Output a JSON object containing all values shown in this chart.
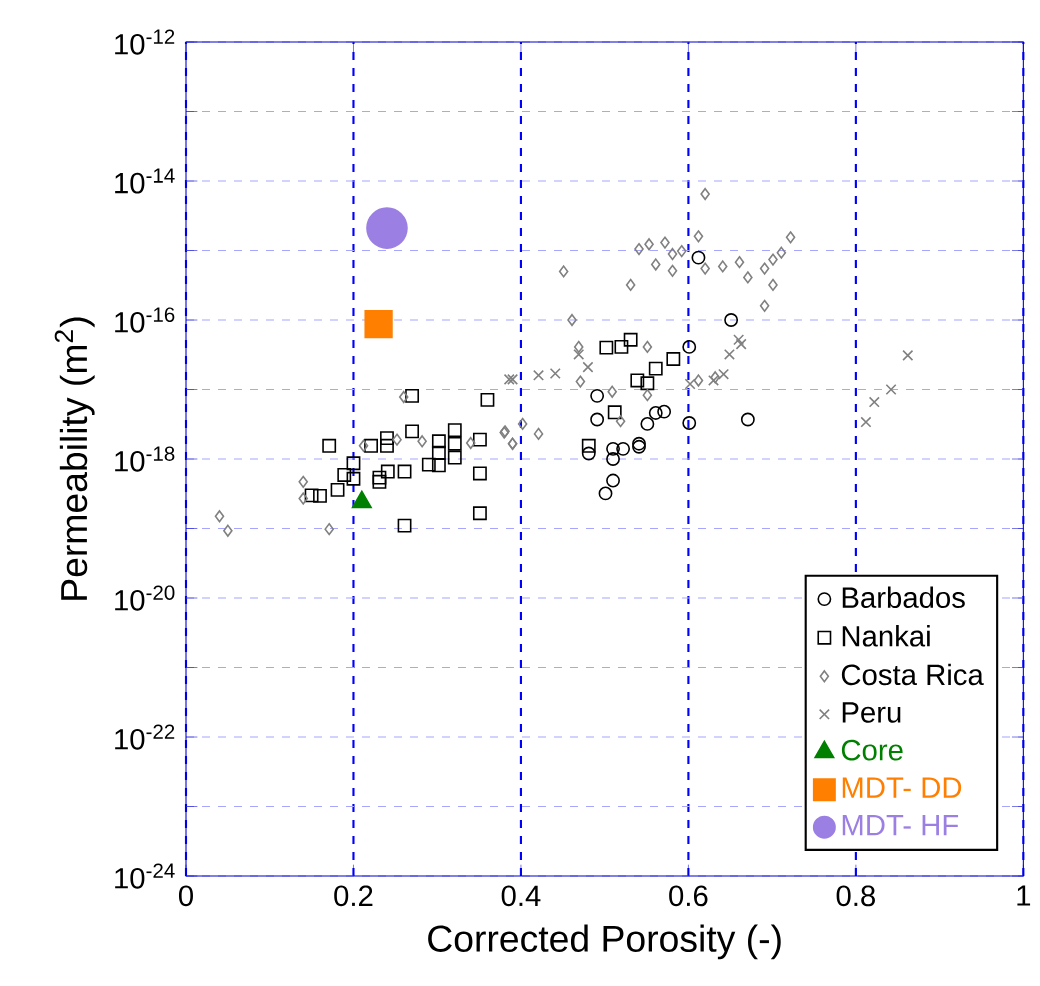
{
  "chart_data": {
    "type": "scatter",
    "xlabel": "Corrected Porosity (-)",
    "ylabel": "Permeability (m$^{2}$)",
    "log": "y",
    "grid": true,
    "legend": "bottom right",
    "xlim": [
      0,
      1
    ],
    "xticks": [
      0,
      0.2,
      0.4,
      0.6,
      0.8,
      1
    ],
    "ylim": [
      1e-24,
      1e-12
    ],
    "yticks": [
      {
        "value": 1e-24,
        "label": "10$^{-24}$"
      },
      {
        "value": 1e-23,
        "label": null
      },
      {
        "value": 1e-22,
        "label": "10$^{-22}$"
      },
      {
        "value": 1e-21,
        "label": null
      },
      {
        "value": 1e-20,
        "label": "10$^{-20}$"
      },
      {
        "value": 1e-19,
        "label": null
      },
      {
        "value": 1e-18,
        "label": "10$^{-18}$"
      },
      {
        "value": 1e-17,
        "label": null
      },
      {
        "value": 1e-16,
        "label": "10$^{-16}$"
      },
      {
        "value": 1e-15,
        "label": null
      },
      {
        "value": 1e-14,
        "label": "10$^{-14}$"
      },
      {
        "value": 1e-13,
        "label": null
      },
      {
        "value": 1e-12,
        "label": "10$^{-12}$"
      }
    ],
    "series": [
      {
        "name": "Barbados",
        "color": "#000000",
        "marker": "circle",
        "x": [
          0.612,
          0.651,
          0.601,
          0.491,
          0.491,
          0.601,
          0.671,
          0.561,
          0.571,
          0.551,
          0.541,
          0.541,
          0.522,
          0.51,
          0.51,
          0.481,
          0.51,
          0.501
        ],
        "values": [
          7.9e-16,
          1e-16,
          4.1e-17,
          8.1e-18,
          3.7e-18,
          3.3e-18,
          3.7e-18,
          4.6e-18,
          4.8e-18,
          3.2e-18,
          1.66e-18,
          1.5e-18,
          1.4e-18,
          1.4e-18,
          1e-18,
          1.2e-18,
          4.9e-19,
          3.2e-19
        ]
      },
      {
        "name": "Nankai",
        "color": "#000000",
        "marker": "square",
        "x": [
          0.27,
          0.36,
          0.171,
          0.221,
          0.24,
          0.24,
          0.27,
          0.302,
          0.321,
          0.351,
          0.2,
          0.189,
          0.2,
          0.231,
          0.231,
          0.241,
          0.261,
          0.29,
          0.302,
          0.302,
          0.321,
          0.321,
          0.351,
          0.181,
          0.15,
          0.16,
          0.261,
          0.351,
          0.502,
          0.52,
          0.531,
          0.582,
          0.561,
          0.539,
          0.551,
          0.512,
          0.481
        ],
        "values": [
          8.1e-18,
          7.1e-18,
          1.55e-18,
          1.55e-18,
          2e-18,
          1.55e-18,
          2.5e-18,
          1.8e-18,
          2.6e-18,
          1.9e-18,
          8.7e-19,
          5.9e-19,
          5.2e-19,
          5.4e-19,
          4.7e-19,
          6.6e-19,
          6.6e-19,
          8.3e-19,
          8.1e-19,
          1.23e-18,
          1.66e-18,
          1.05e-18,
          6.2e-19,
          3.6e-19,
          3e-19,
          2.95e-19,
          1.1e-19,
          1.66e-19,
          4e-17,
          4.1e-17,
          5.2e-17,
          2.75e-17,
          2e-17,
          1.35e-17,
          1.23e-17,
          4.7e-18,
          1.55e-18
        ]
      },
      {
        "name": "Costa Rica",
        "color": "#808080",
        "marker": "diamond",
        "x": [
          0.62,
          0.612,
          0.541,
          0.553,
          0.572,
          0.592,
          0.581,
          0.561,
          0.581,
          0.62,
          0.641,
          0.661,
          0.671,
          0.691,
          0.701,
          0.711,
          0.722,
          0.701,
          0.691,
          0.451,
          0.531,
          0.461,
          0.469,
          0.471,
          0.551,
          0.509,
          0.519,
          0.551,
          0.381,
          0.39,
          0.421,
          0.402,
          0.612,
          0.632,
          0.04,
          0.05,
          0.14,
          0.14,
          0.171,
          0.212,
          0.252,
          0.26,
          0.282,
          0.34,
          0.38,
          0.39
        ],
        "values": [
          6.5e-15,
          1.6e-15,
          1.05e-15,
          1.23e-15,
          1.3e-15,
          9.8e-16,
          8.9e-16,
          6.3e-16,
          5.1e-16,
          5.5e-16,
          5.9e-16,
          6.8e-16,
          4.1e-16,
          5.5e-16,
          7.4e-16,
          9.3e-16,
          1.55e-15,
          3.2e-16,
          1.6e-16,
          5e-16,
          3.2e-16,
          1e-16,
          4.1e-17,
          1.3e-17,
          4.1e-17,
          9.3e-18,
          3.5e-18,
          8.3e-18,
          2.5e-18,
          1.66e-18,
          2.3e-18,
          3.2e-18,
          1.35e-17,
          1.5e-17,
          1.5e-19,
          9.3e-20,
          4.7e-19,
          2.7e-19,
          9.8e-20,
          1.55e-18,
          1.9e-18,
          7.8e-18,
          1.8e-18,
          1.7e-18,
          2.4e-18,
          1.66e-18
        ]
      },
      {
        "name": "Peru",
        "color": "#808080",
        "marker": "cross",
        "x": [
          0.386,
          0.39,
          0.421,
          0.441,
          0.48,
          0.469,
          0.649,
          0.66,
          0.663,
          0.642,
          0.63,
          0.602,
          0.862,
          0.842,
          0.822,
          0.812
        ],
        "values": [
          1.4e-17,
          1.4e-17,
          1.6e-17,
          1.7e-17,
          2.1e-17,
          3.2e-17,
          3.2e-17,
          5.2e-17,
          4.5e-17,
          1.66e-17,
          1.35e-17,
          1.2e-17,
          3.1e-17,
          1e-17,
          6.6e-18,
          3.4e-18
        ]
      },
      {
        "name": "Core",
        "color": "#008000",
        "marker": "triangle",
        "x": [
          0.21
        ],
        "values": [
          2.4e-19
        ]
      },
      {
        "name": "MDT- DD",
        "color": "#ff7f00",
        "marker": "square",
        "x": [
          0.23
        ],
        "values": [
          8.7e-17
        ]
      },
      {
        "name": "MDT- HF",
        "color": "#9b7fe3",
        "marker": "circle",
        "x": [
          0.24
        ],
        "values": [
          2.1e-15
        ]
      }
    ]
  }
}
